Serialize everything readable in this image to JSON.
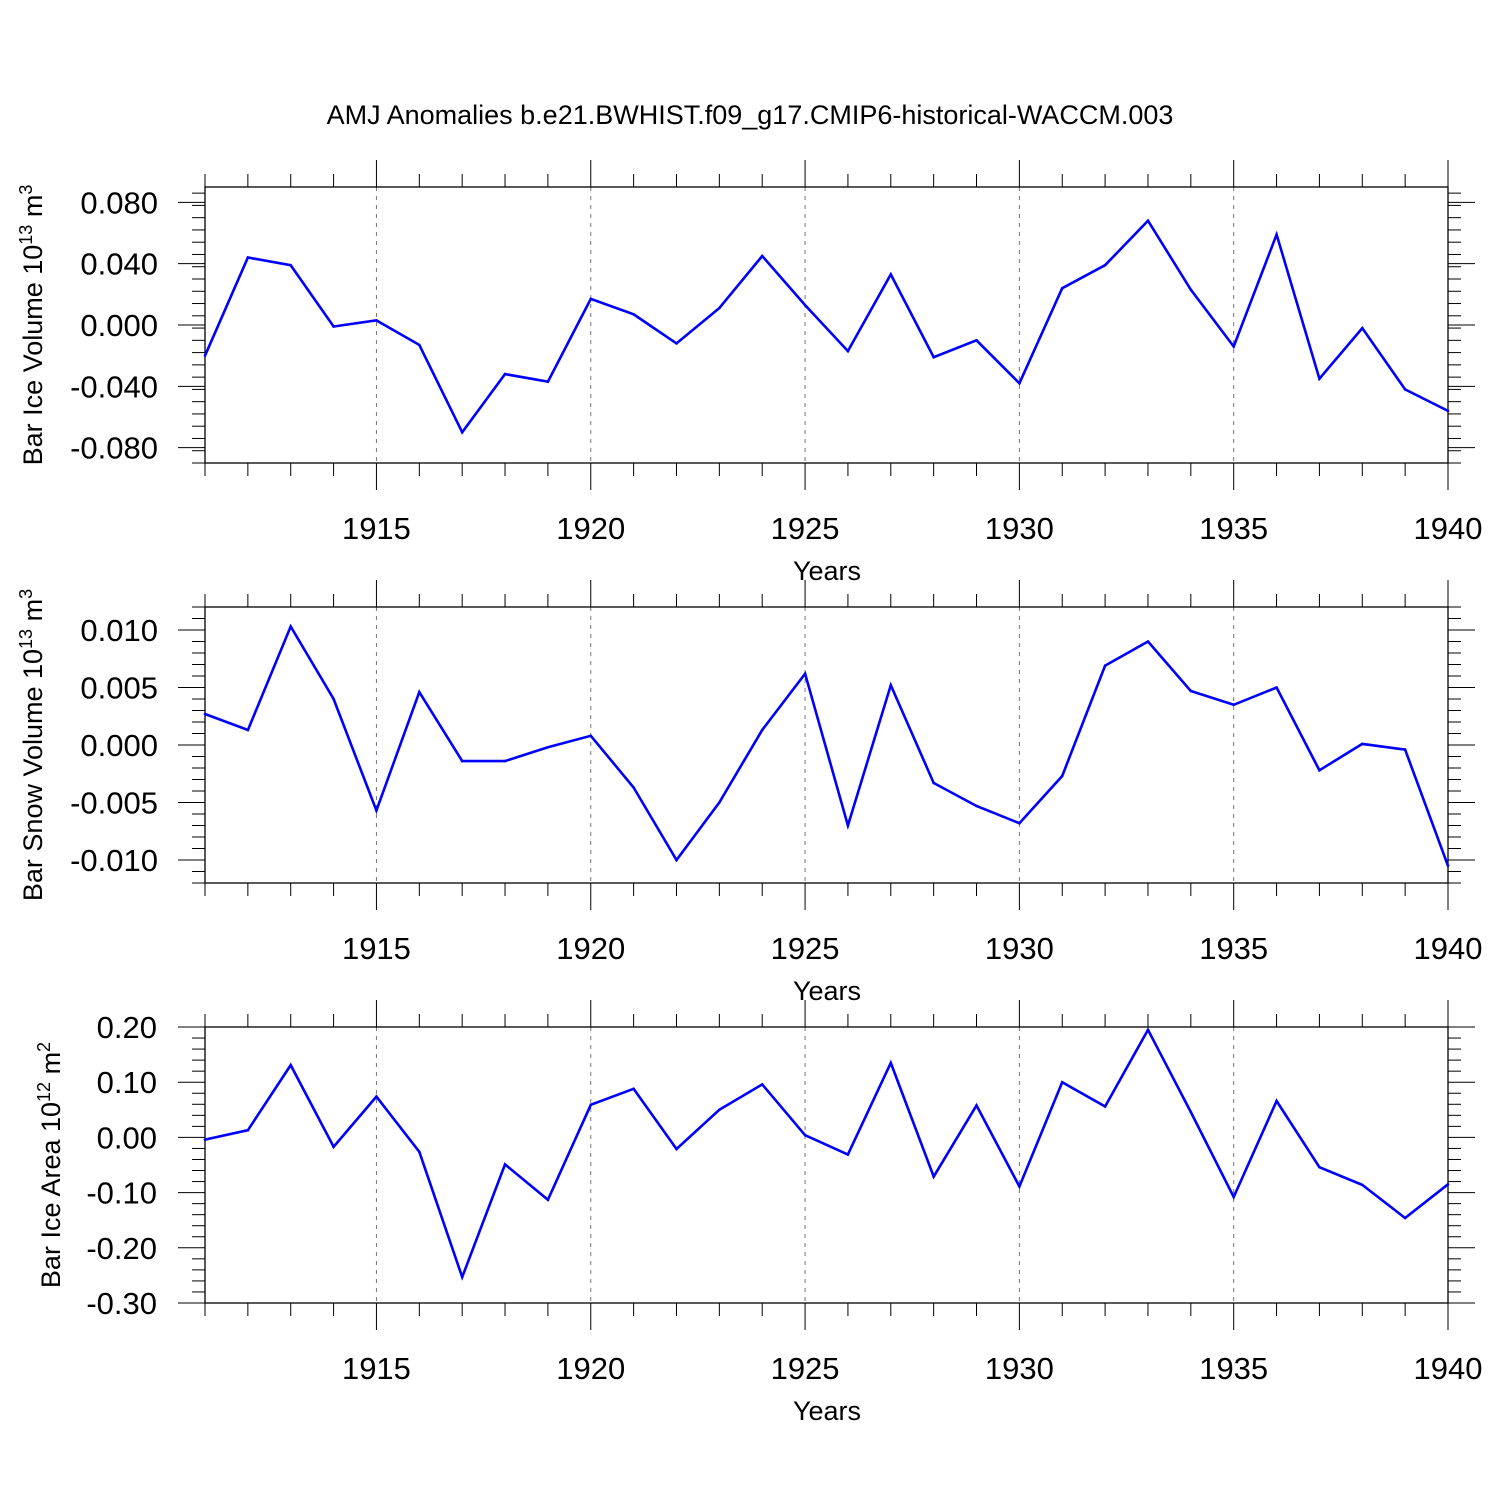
{
  "figure_title": "AMJ Anomalies b.e21.BWHIST.f09_g17.CMIP6-historical-WACCM.003",
  "colors": {
    "series": "#0000ff",
    "axes": "#000000",
    "grid": "#777777"
  },
  "chart_data": [
    {
      "type": "line",
      "xlabel": "Years",
      "ylabel_text": "Bar Ice Volume 10",
      "ylabel_exp": "13",
      "ylabel_unit": " m",
      "ylabel_unit_exp": "3",
      "xlim": [
        1911,
        1940
      ],
      "ylim": [
        -0.09,
        0.09
      ],
      "yticks": [
        -0.08,
        -0.04,
        0.0,
        0.04,
        0.08
      ],
      "ytick_labels": [
        "-0.080",
        "-0.040",
        "0.000",
        "0.040",
        "0.080"
      ],
      "xticks": [
        1915,
        1920,
        1925,
        1930,
        1935,
        1940
      ],
      "xtick_labels": [
        "1915",
        "1920",
        "1925",
        "1930",
        "1935",
        "1940"
      ],
      "x": [
        1911,
        1912,
        1913,
        1914,
        1915,
        1916,
        1917,
        1918,
        1919,
        1920,
        1921,
        1922,
        1923,
        1924,
        1925,
        1926,
        1927,
        1928,
        1929,
        1930,
        1931,
        1932,
        1933,
        1934,
        1935,
        1936,
        1937,
        1938,
        1939,
        1940
      ],
      "values": [
        -0.02,
        0.044,
        0.039,
        -0.001,
        0.003,
        -0.013,
        -0.07,
        -0.032,
        -0.037,
        0.017,
        0.007,
        -0.012,
        0.011,
        0.045,
        0.013,
        -0.017,
        0.033,
        -0.021,
        -0.01,
        -0.038,
        0.024,
        0.039,
        0.068,
        0.023,
        -0.014,
        0.059,
        -0.035,
        -0.002,
        -0.042,
        -0.056
      ]
    },
    {
      "type": "line",
      "xlabel": "Years",
      "ylabel_text": "Bar Snow Volume 10",
      "ylabel_exp": "13",
      "ylabel_unit": " m",
      "ylabel_unit_exp": "3",
      "xlim": [
        1911,
        1940
      ],
      "ylim": [
        -0.012,
        0.012
      ],
      "yticks": [
        -0.01,
        -0.005,
        0.0,
        0.005,
        0.01
      ],
      "ytick_labels": [
        "-0.010",
        "-0.005",
        "0.000",
        "0.005",
        "0.010"
      ],
      "xticks": [
        1915,
        1920,
        1925,
        1930,
        1935,
        1940
      ],
      "xtick_labels": [
        "1915",
        "1920",
        "1925",
        "1930",
        "1935",
        "1940"
      ],
      "x": [
        1911,
        1912,
        1913,
        1914,
        1915,
        1916,
        1917,
        1918,
        1919,
        1920,
        1921,
        1922,
        1923,
        1924,
        1925,
        1926,
        1927,
        1928,
        1929,
        1930,
        1931,
        1932,
        1933,
        1934,
        1935,
        1936,
        1937,
        1938,
        1939,
        1940
      ],
      "values": [
        0.0027,
        0.0013,
        0.0103,
        0.004,
        -0.0057,
        0.0046,
        -0.0014,
        -0.0014,
        -0.0002,
        0.0008,
        -0.0037,
        -0.01,
        -0.005,
        0.0013,
        0.0062,
        -0.007,
        0.0052,
        -0.0033,
        -0.0053,
        -0.0068,
        -0.0027,
        0.0069,
        0.009,
        0.0047,
        0.0035,
        0.005,
        -0.0022,
        0.0001,
        -0.0004,
        -0.0105
      ]
    },
    {
      "type": "line",
      "xlabel": "Years",
      "ylabel_text": "Bar Ice Area 10",
      "ylabel_exp": "12",
      "ylabel_unit": " m",
      "ylabel_unit_exp": "2",
      "xlim": [
        1911,
        1940
      ],
      "ylim": [
        -0.3,
        0.2
      ],
      "yticks": [
        -0.3,
        -0.2,
        -0.1,
        0.0,
        0.1,
        0.2
      ],
      "ytick_labels": [
        "-0.30",
        "-0.20",
        "-0.10",
        "0.00",
        "0.10",
        "0.20"
      ],
      "xticks": [
        1915,
        1920,
        1925,
        1930,
        1935,
        1940
      ],
      "xtick_labels": [
        "1915",
        "1920",
        "1925",
        "1930",
        "1935",
        "1940"
      ],
      "x": [
        1911,
        1912,
        1913,
        1914,
        1915,
        1916,
        1917,
        1918,
        1919,
        1920,
        1921,
        1922,
        1923,
        1924,
        1925,
        1926,
        1927,
        1928,
        1929,
        1930,
        1931,
        1932,
        1933,
        1934,
        1935,
        1936,
        1937,
        1938,
        1939,
        1940
      ],
      "values": [
        -0.004,
        0.013,
        0.131,
        -0.017,
        0.074,
        -0.026,
        -0.253,
        -0.049,
        -0.113,
        0.059,
        0.088,
        -0.021,
        0.05,
        0.096,
        0.004,
        -0.031,
        0.135,
        -0.071,
        0.058,
        -0.089,
        0.1,
        0.056,
        0.195,
        0.046,
        -0.108,
        0.066,
        -0.054,
        -0.086,
        -0.146,
        -0.085
      ]
    }
  ]
}
